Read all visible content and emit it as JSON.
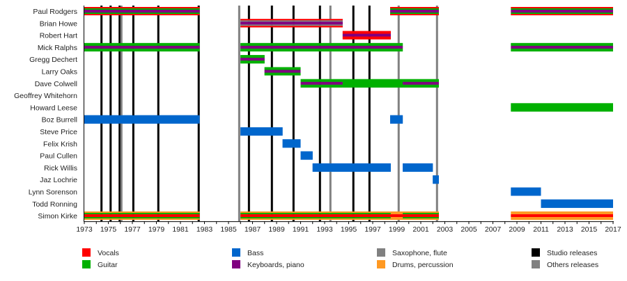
{
  "chart_data": {
    "type": "timeline",
    "title": "",
    "xlim": [
      1973,
      2017
    ],
    "x_ticks": [
      1973,
      1975,
      1977,
      1979,
      1981,
      1983,
      1985,
      1987,
      1989,
      1991,
      1993,
      1995,
      1997,
      1999,
      2001,
      2003,
      2005,
      2007,
      2009,
      2011,
      2013,
      2015,
      2017
    ],
    "colors": {
      "vocals": "#ff0000",
      "guitar": "#00b000",
      "bass": "#0066cc",
      "keyboards": "#800080",
      "sax": "#808080",
      "drums": "#ff9922",
      "studio": "#000000",
      "other": "#808080"
    },
    "members": [
      {
        "name": "Paul Rodgers",
        "segments": [
          [
            1973,
            1982.6,
            [
              "vocals",
              "guitar",
              "keyboards"
            ]
          ],
          [
            1998.45,
            2002.5,
            [
              "vocals",
              "guitar",
              "keyboards"
            ]
          ],
          [
            2008.5,
            2017,
            [
              "vocals",
              "guitar",
              "keyboards"
            ]
          ]
        ]
      },
      {
        "name": "Brian Howe",
        "segments": [
          [
            1986,
            1994.5,
            [
              "vocals",
              "sax",
              "keyboards"
            ]
          ]
        ]
      },
      {
        "name": "Robert Hart",
        "segments": [
          [
            1994.5,
            1998.5,
            [
              "vocals",
              "keyboards"
            ]
          ]
        ]
      },
      {
        "name": "Mick Ralphs",
        "segments": [
          [
            1973,
            1982.6,
            [
              "guitar",
              "keyboards"
            ]
          ],
          [
            1986,
            1999.5,
            [
              "guitar",
              "keyboards"
            ]
          ],
          [
            2008.5,
            2017,
            [
              "guitar",
              "keyboards"
            ]
          ]
        ]
      },
      {
        "name": "Gregg Dechert",
        "segments": [
          [
            1986,
            1988,
            [
              "guitar",
              "keyboards"
            ]
          ]
        ]
      },
      {
        "name": "Larry Oaks",
        "segments": [
          [
            1988,
            1991,
            [
              "guitar",
              "keyboards"
            ]
          ]
        ]
      },
      {
        "name": "Dave Colwell",
        "segments": [
          [
            1991,
            1994.5,
            [
              "guitar",
              "keyboards"
            ]
          ],
          [
            1994.5,
            1999.5,
            [
              "guitar"
            ]
          ],
          [
            1999.5,
            2002.5,
            [
              "guitar",
              "keyboards"
            ]
          ]
        ]
      },
      {
        "name": "Geoffrey Whitehorn",
        "segments": []
      },
      {
        "name": "Howard Leese",
        "segments": [
          [
            2008.5,
            2017,
            [
              "guitar"
            ]
          ]
        ]
      },
      {
        "name": "Boz Burrell",
        "segments": [
          [
            1973,
            1982.6,
            [
              "bass"
            ]
          ],
          [
            1998.45,
            1999.5,
            [
              "bass"
            ]
          ]
        ]
      },
      {
        "name": "Steve Price",
        "segments": [
          [
            1986,
            1989.5,
            [
              "bass"
            ]
          ]
        ]
      },
      {
        "name": "Felix Krish",
        "segments": [
          [
            1989.5,
            1991,
            [
              "bass"
            ]
          ]
        ]
      },
      {
        "name": "Paul Cullen",
        "segments": [
          [
            1991,
            1992,
            [
              "bass"
            ]
          ]
        ]
      },
      {
        "name": "Rick Willis",
        "segments": [
          [
            1992,
            1998.5,
            [
              "bass"
            ]
          ],
          [
            1999.5,
            2002,
            [
              "bass"
            ]
          ]
        ]
      },
      {
        "name": "Jaz Lochrie",
        "segments": [
          [
            2002,
            2002.5,
            [
              "bass"
            ]
          ]
        ]
      },
      {
        "name": "Lynn Sorenson",
        "segments": [
          [
            2008.5,
            2011,
            [
              "bass"
            ]
          ]
        ]
      },
      {
        "name": "Todd Ronning",
        "segments": [
          [
            2011,
            2017,
            [
              "bass"
            ]
          ]
        ]
      },
      {
        "name": "Simon Kirke",
        "segments": [
          [
            1973,
            1982.6,
            [
              "drums",
              "guitar",
              "vocals"
            ]
          ],
          [
            1986,
            1998.5,
            [
              "drums",
              "guitar",
              "vocals"
            ]
          ],
          [
            1998.5,
            1999.5,
            [
              "drums",
              "vocals"
            ]
          ],
          [
            1999.5,
            2002.5,
            [
              "drums",
              "guitar",
              "vocals"
            ]
          ],
          [
            2008.5,
            2017,
            [
              "drums",
              "vocals"
            ]
          ]
        ]
      }
    ],
    "studio_releases": [
      1974.43,
      1975.19,
      1975.94,
      1977.08,
      1979.16,
      1982.52,
      1986.7,
      1988.61,
      1990.41,
      1992.61,
      1995.39,
      1996.73
    ],
    "other_releases": [
      1976.09,
      1985.89,
      1993.48,
      1999.16,
      2002.35
    ],
    "legend": [
      {
        "key": "vocals",
        "label": "Vocals"
      },
      {
        "key": "guitar",
        "label": "Guitar"
      },
      {
        "key": "bass",
        "label": "Bass"
      },
      {
        "key": "keyboards",
        "label": "Keyboards, piano"
      },
      {
        "key": "sax",
        "label": "Saxophone, flute"
      },
      {
        "key": "drums",
        "label": "Drums, percussion"
      },
      {
        "key": "studio",
        "label": "Studio releases"
      },
      {
        "key": "other",
        "label": "Others releases"
      }
    ],
    "legend_placement": "bottom"
  }
}
